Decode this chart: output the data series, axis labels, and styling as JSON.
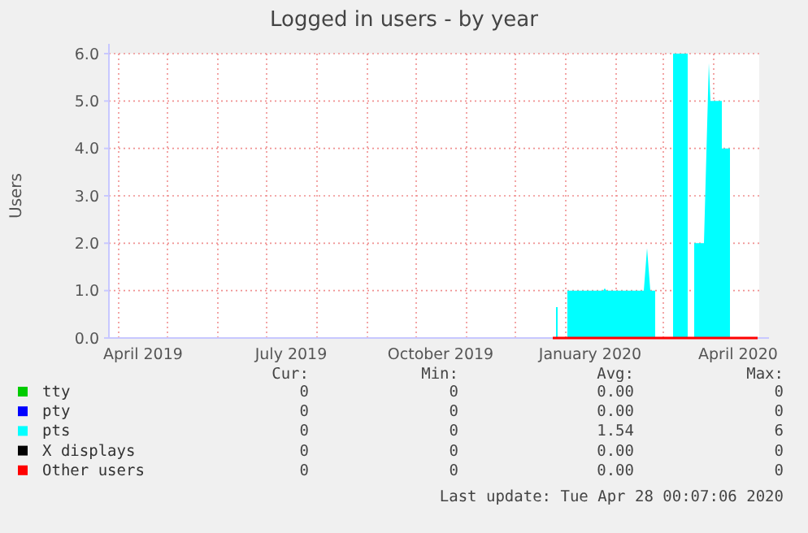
{
  "chart_data": {
    "type": "area",
    "title": "Logged in users - by year",
    "ylabel": "Users",
    "xlim": [
      "2019-03-26",
      "2020-04-29"
    ],
    "ylim": [
      0,
      6
    ],
    "yticks": [
      {
        "value": 0,
        "label": "0.0"
      },
      {
        "value": 1,
        "label": "1.0"
      },
      {
        "value": 2,
        "label": "2.0"
      },
      {
        "value": 3,
        "label": "3.0"
      },
      {
        "value": 4,
        "label": "4.0"
      },
      {
        "value": 5,
        "label": "5.0"
      },
      {
        "value": 6,
        "label": "6.0"
      }
    ],
    "xticks": [
      {
        "value": "2019-04-01",
        "label": null
      },
      {
        "value": "2019-05-01",
        "label": null
      },
      {
        "value": "2019-06-01",
        "label": null
      },
      {
        "value": "2019-07-01",
        "label": null
      },
      {
        "value": "2019-08-01",
        "label": null
      },
      {
        "value": "2019-09-01",
        "label": null
      },
      {
        "value": "2019-10-01",
        "label": null
      },
      {
        "value": "2019-11-01",
        "label": null
      },
      {
        "value": "2019-12-01",
        "label": null
      },
      {
        "value": "2020-01-01",
        "label": null
      },
      {
        "value": "2020-02-01",
        "label": null
      },
      {
        "value": "2020-03-01",
        "label": null
      },
      {
        "value": "2020-04-01",
        "label": null
      },
      {
        "value": "2019-04-16",
        "label": "April 2019"
      },
      {
        "value": "2019-07-16",
        "label": "July 2019"
      },
      {
        "value": "2019-10-16",
        "label": "October 2019"
      },
      {
        "value": "2020-01-16",
        "label": "January 2020"
      },
      {
        "value": "2020-04-16",
        "label": "April 2020"
      }
    ],
    "grid": true,
    "legend": "bottom",
    "series": [
      {
        "name": "tty",
        "color": "#00cc00"
      },
      {
        "name": "pty",
        "color": "#0000ff"
      },
      {
        "name": "pts",
        "color": "#00ffff",
        "x": [
          "2019-12-24",
          "2019-12-26",
          "2019-12-26",
          "2019-12-27",
          "2019-12-27",
          "2020-01-02",
          "2020-01-02",
          "2020-01-24",
          "2020-01-25",
          "2020-01-26",
          "2020-02-18",
          "2020-02-20",
          "2020-02-22",
          "2020-02-25",
          "2020-02-25",
          "2020-03-07",
          "2020-03-07",
          "2020-03-16",
          "2020-03-16",
          "2020-03-20",
          "2020-03-20",
          "2020-03-26",
          "2020-03-29",
          "2020-03-30",
          "2020-04-06",
          "2020-04-06",
          "2020-04-11",
          "2020-04-11",
          "2020-04-28"
        ],
        "values": [
          0,
          0,
          0.65,
          0.65,
          0,
          0,
          1,
          1,
          1.05,
          1,
          1,
          1.9,
          1,
          1,
          0,
          0,
          6,
          6,
          0,
          0,
          2,
          2,
          5.8,
          5,
          5,
          4,
          4,
          0,
          0
        ]
      },
      {
        "name": "X displays",
        "color": "#000000"
      },
      {
        "name": "Other users",
        "color": "#ff0000",
        "type": "line",
        "x": [
          "2019-12-24",
          "2020-04-28"
        ],
        "values": [
          0,
          0
        ]
      }
    ],
    "annotations": [
      "Cur:",
      "Min:",
      "Avg:",
      "Max:",
      "0",
      "0",
      "0.00",
      "0",
      "0",
      "0",
      "0.00",
      "0",
      "0",
      "0",
      "1.54",
      "6",
      "0",
      "0",
      "0.00",
      "0",
      "0",
      "0",
      "0.00",
      "0",
      "Last update: Tue Apr 28 00:07:06 2020"
    ]
  }
}
